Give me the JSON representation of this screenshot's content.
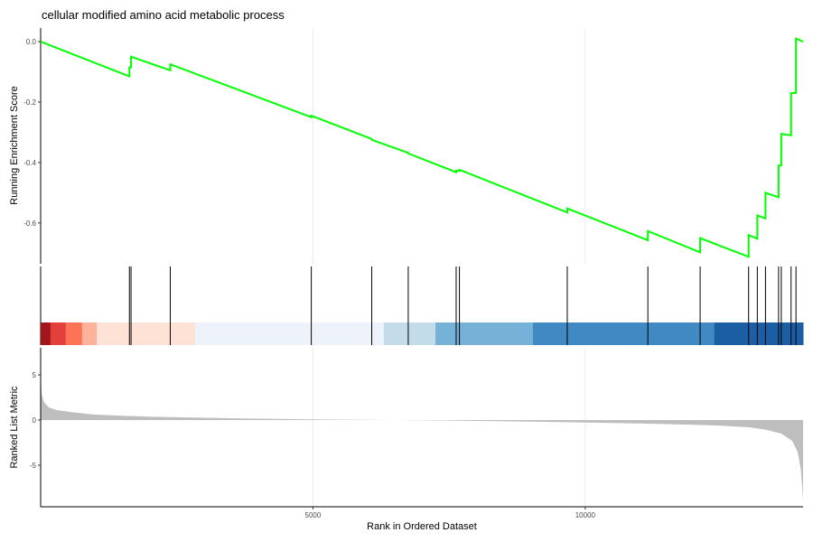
{
  "chart_data": {
    "type": "line",
    "title": "cellular modified amino acid metabolic process",
    "xlabel": "Rank in Ordered Dataset",
    "xlim": [
      0,
      14000
    ],
    "x_ticks": [
      "5000",
      "10000"
    ],
    "x_tick_values": [
      5000,
      10000
    ],
    "grid": true,
    "panels": [
      {
        "name": "running-score",
        "ylabel": "Running Enrichment Score",
        "ylim": [
          -0.735,
          0.045
        ],
        "y_ticks": [
          "0.0",
          "-0.2",
          "-0.4",
          "-0.6"
        ],
        "y_tick_values": [
          0.0,
          -0.2,
          -0.4,
          -0.6
        ],
        "line_color": "#00ff00",
        "hits": [
          1630,
          1660,
          2380,
          4970,
          6080,
          6750,
          7630,
          7690,
          9670,
          11150,
          12110,
          13000,
          13160,
          13310,
          13550,
          13600,
          13780,
          13870
        ],
        "points": [
          [
            0,
            0.0
          ],
          [
            1630,
            -0.115
          ],
          [
            1630,
            -0.085
          ],
          [
            1660,
            -0.085
          ],
          [
            1660,
            -0.05
          ],
          [
            2380,
            -0.095
          ],
          [
            2380,
            -0.075
          ],
          [
            4970,
            -0.25
          ],
          [
            4970,
            -0.245
          ],
          [
            6080,
            -0.322
          ],
          [
            6080,
            -0.325
          ],
          [
            6750,
            -0.368
          ],
          [
            6750,
            -0.37
          ],
          [
            7630,
            -0.432
          ],
          [
            7630,
            -0.427
          ],
          [
            7690,
            -0.428
          ],
          [
            7690,
            -0.424
          ],
          [
            9670,
            -0.565
          ],
          [
            9670,
            -0.552
          ],
          [
            11150,
            -0.657
          ],
          [
            11150,
            -0.627
          ],
          [
            12110,
            -0.697
          ],
          [
            12110,
            -0.65
          ],
          [
            13000,
            -0.712
          ],
          [
            13000,
            -0.64
          ],
          [
            13160,
            -0.652
          ],
          [
            13160,
            -0.575
          ],
          [
            13310,
            -0.585
          ],
          [
            13310,
            -0.5
          ],
          [
            13550,
            -0.515
          ],
          [
            13550,
            -0.41
          ],
          [
            13600,
            -0.41
          ],
          [
            13600,
            -0.305
          ],
          [
            13780,
            -0.31
          ],
          [
            13780,
            -0.17
          ],
          [
            13870,
            -0.17
          ],
          [
            13870,
            0.01
          ],
          [
            14000,
            0.0
          ]
        ]
      },
      {
        "name": "ranked-metric",
        "ylabel": "Ranked List Metric",
        "ylim": [
          -9.6,
          8.0
        ],
        "y_ticks": [
          "5",
          "0",
          "-5"
        ],
        "y_tick_values": [
          5,
          0,
          -5
        ],
        "fill_color": "#bebebe",
        "points": [
          [
            0,
            4.8
          ],
          [
            20,
            2.8
          ],
          [
            60,
            2.0
          ],
          [
            150,
            1.4
          ],
          [
            300,
            1.1
          ],
          [
            600,
            0.85
          ],
          [
            1000,
            0.6
          ],
          [
            1500,
            0.48
          ],
          [
            2000,
            0.38
          ],
          [
            3000,
            0.25
          ],
          [
            4000,
            0.15
          ],
          [
            5000,
            0.07
          ],
          [
            6000,
            0.02
          ],
          [
            7000,
            -0.03
          ],
          [
            8000,
            -0.1
          ],
          [
            9000,
            -0.18
          ],
          [
            10000,
            -0.27
          ],
          [
            11000,
            -0.38
          ],
          [
            12000,
            -0.52
          ],
          [
            12500,
            -0.62
          ],
          [
            13000,
            -0.8
          ],
          [
            13300,
            -1.05
          ],
          [
            13600,
            -1.5
          ],
          [
            13800,
            -2.3
          ],
          [
            13900,
            -3.5
          ],
          [
            13960,
            -5.5
          ],
          [
            14000,
            -8.8
          ]
        ]
      }
    ],
    "color_bar": [
      {
        "x0": 0,
        "x1": 180,
        "color": "#a3161c"
      },
      {
        "x0": 180,
        "x1": 460,
        "color": "#e4403b"
      },
      {
        "x0": 460,
        "x1": 760,
        "color": "#fc7455"
      },
      {
        "x0": 760,
        "x1": 1030,
        "color": "#fdb39b"
      },
      {
        "x0": 1030,
        "x1": 2840,
        "color": "#fee2d6"
      },
      {
        "x0": 2840,
        "x1": 6300,
        "color": "#eef3fb"
      },
      {
        "x0": 6300,
        "x1": 7250,
        "color": "#c4dcea"
      },
      {
        "x0": 7250,
        "x1": 9040,
        "color": "#76b2d7"
      },
      {
        "x0": 9040,
        "x1": 12370,
        "color": "#4089c2"
      },
      {
        "x0": 12370,
        "x1": 14000,
        "color": "#1c5ea4"
      }
    ]
  }
}
